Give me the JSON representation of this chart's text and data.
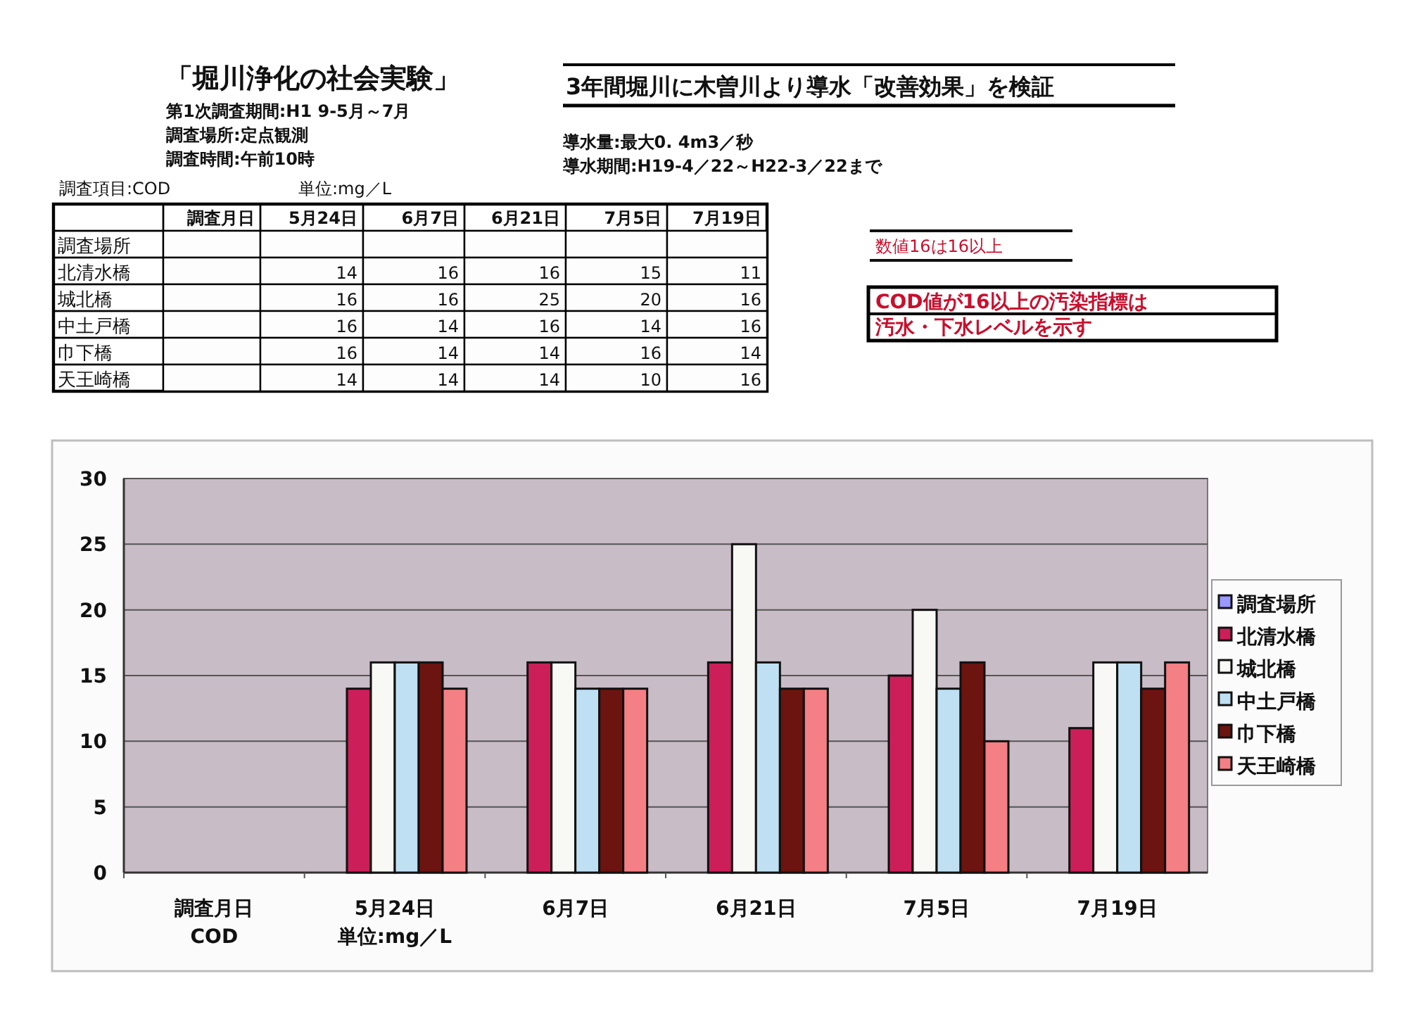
{
  "chart_data": [
    {
      "type": "heatmap",
      "title": "「堀川浄化の社会実験」",
      "categories": [
        "調査月日",
        "5月24日",
        "6月7日",
        "6月21日",
        "7月5日",
        "7月19日"
      ],
      "y_categories": [
        "調査場所",
        "北清水橋",
        "城北橋",
        "中土戸橋",
        "巾下橋",
        "天王崎橋"
      ],
      "cells": [
        [
          null,
          null,
          null,
          null,
          null,
          null
        ],
        [
          null,
          14,
          16,
          16,
          15,
          11
        ],
        [
          null,
          16,
          16,
          25,
          20,
          16
        ],
        [
          null,
          16,
          14,
          16,
          14,
          16
        ],
        [
          null,
          16,
          14,
          14,
          16,
          14
        ],
        [
          null,
          14,
          14,
          14,
          10,
          16
        ]
      ],
      "data_labels": true,
      "annotations": [
        "第1次調査期間:H1 9-5月～7月",
        "調査場所:定点観測",
        "調査時間:午前10時",
        "調査項目:COD",
        "単位:mg／L",
        "3年間堀川に木曽川より導水「改善効果」を検証",
        "導水量:最大0. 4m3／秒",
        "導水期間:H19-4／22～H22-3／22まで",
        "数値16は16以上",
        "COD値が16以上の汚染指標は",
        "汚水・下水レベルを示す"
      ]
    },
    {
      "type": "bar",
      "categories": [
        "調査月日",
        "5月24日",
        "6月7日",
        "6月21日",
        "7月5日",
        "7月19日"
      ],
      "series": [
        {
          "name": "調査場所",
          "color": "#9999ff",
          "values": [
            null,
            null,
            null,
            null,
            null,
            null
          ]
        },
        {
          "name": "北清水橋",
          "color": "#cc1f5a",
          "values": [
            null,
            14,
            16,
            16,
            15,
            11
          ]
        },
        {
          "name": "城北橋",
          "color": "#f8f8f4",
          "values": [
            null,
            16,
            16,
            25,
            20,
            16
          ]
        },
        {
          "name": "中土戸橋",
          "color": "#bfe0f2",
          "values": [
            null,
            16,
            14,
            16,
            14,
            16
          ]
        },
        {
          "name": "巾下橋",
          "color": "#6b1410",
          "values": [
            null,
            16,
            14,
            14,
            16,
            14
          ]
        },
        {
          "name": "天王崎橋",
          "color": "#f47f84",
          "values": [
            null,
            14,
            14,
            14,
            10,
            16
          ]
        }
      ],
      "ylim": [
        0,
        30
      ],
      "yticks": [
        0,
        5,
        10,
        15,
        20,
        25,
        30
      ],
      "grid": "y",
      "legend": "right",
      "annotations": [
        "COD",
        "単位:mg／L"
      ]
    }
  ]
}
